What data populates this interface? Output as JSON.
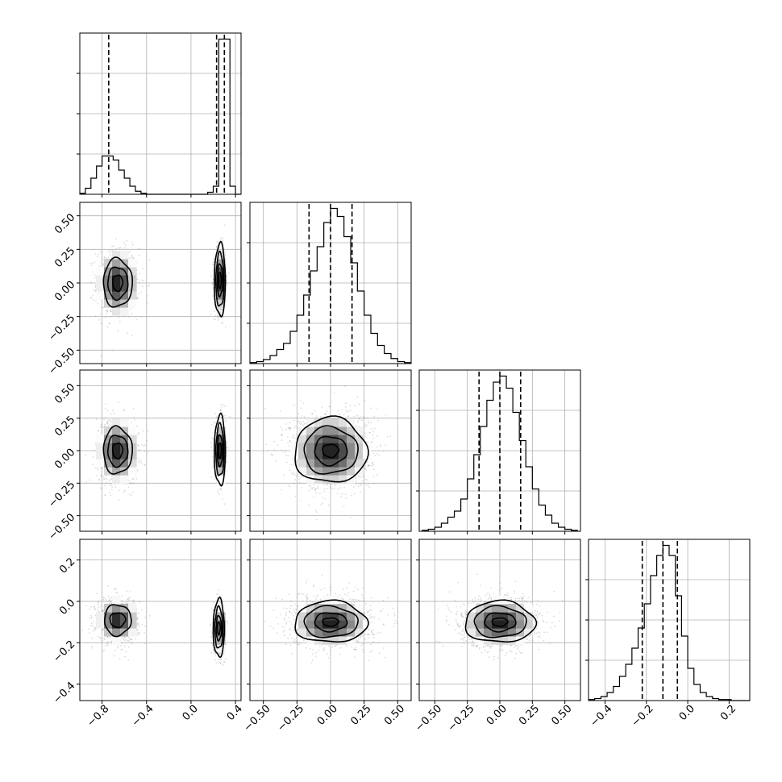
{
  "chart_data": {
    "type": "corner",
    "grid": true,
    "parameters": [
      {
        "range": [
          -1.0,
          0.45
        ],
        "ticks": [
          -0.8,
          -0.4,
          0.0,
          0.4
        ],
        "tick_labels": [
          "−0.8",
          "−0.4",
          "0.0",
          "0.4"
        ],
        "hist": {
          "bin_edges": [
            -1.0,
            -0.95,
            -0.9,
            -0.85,
            -0.8,
            -0.75,
            -0.7,
            -0.65,
            -0.6,
            -0.55,
            -0.5,
            -0.45,
            -0.4,
            -0.35,
            -0.3,
            -0.25,
            -0.2,
            -0.15,
            -0.1,
            -0.05,
            0.0,
            0.05,
            0.1,
            0.15,
            0.2,
            0.25,
            0.3,
            0.35,
            0.4,
            0.45
          ],
          "counts": [
            0.5,
            3,
            8,
            14,
            19,
            19,
            17,
            12,
            8,
            4,
            1.5,
            0.5,
            0,
            0,
            0,
            0,
            0,
            0,
            0,
            0,
            0,
            0,
            0,
            1,
            4,
            77,
            77,
            4,
            0
          ],
          "ymax": 80
        },
        "quantiles": [
          -0.74,
          0.23,
          0.3
        ]
      },
      {
        "range": [
          -0.6,
          0.6
        ],
        "ticks": [
          -0.5,
          -0.25,
          0.0,
          0.25,
          0.5
        ],
        "tick_labels": [
          "−0.50",
          "−0.25",
          "0.00",
          "0.25",
          "0.50"
        ],
        "hist": {
          "bin_edges": [
            -0.6,
            -0.55,
            -0.5,
            -0.45,
            -0.4,
            -0.35,
            -0.3,
            -0.25,
            -0.2,
            -0.15,
            -0.1,
            -0.05,
            0.0,
            0.05,
            0.1,
            0.15,
            0.2,
            0.25,
            0.3,
            0.35,
            0.4,
            0.45,
            0.5,
            0.55,
            0.6
          ],
          "counts": [
            0.5,
            1,
            2,
            4,
            7,
            10,
            16,
            24,
            34,
            46,
            58,
            70,
            77,
            73,
            63,
            50,
            36,
            24,
            15,
            9,
            5,
            2.5,
            1,
            0.5
          ],
          "ymax": 80
        },
        "quantiles": [
          -0.16,
          0.0,
          0.16
        ]
      },
      {
        "range": [
          -0.62,
          0.62
        ],
        "ticks": [
          -0.5,
          -0.25,
          0.0,
          0.25,
          0.5
        ],
        "tick_labels": [
          "−0.50",
          "−0.25",
          "0.00",
          "0.25",
          "0.50"
        ],
        "hist": {
          "bin_edges": [
            -0.6,
            -0.55,
            -0.5,
            -0.45,
            -0.4,
            -0.35,
            -0.3,
            -0.25,
            -0.2,
            -0.15,
            -0.1,
            -0.05,
            0.0,
            0.05,
            0.1,
            0.15,
            0.2,
            0.25,
            0.3,
            0.35,
            0.4,
            0.45,
            0.5,
            0.55,
            0.6
          ],
          "counts": [
            0.5,
            1,
            2,
            4,
            7,
            10,
            16,
            26,
            38,
            52,
            65,
            74,
            77,
            71,
            59,
            45,
            32,
            21,
            13,
            8,
            4,
            2,
            1,
            0.5
          ],
          "ymax": 80
        },
        "quantiles": [
          -0.16,
          0.0,
          0.16
        ]
      },
      {
        "range": [
          -0.48,
          0.3
        ],
        "ticks": [
          -0.4,
          -0.2,
          0.0,
          0.2
        ],
        "tick_labels": [
          "−0.4",
          "−0.2",
          "0.0",
          "0.2"
        ],
        "hist": {
          "bin_edges": [
            -0.48,
            -0.45,
            -0.42,
            -0.39,
            -0.36,
            -0.33,
            -0.3,
            -0.27,
            -0.24,
            -0.21,
            -0.18,
            -0.15,
            -0.12,
            -0.09,
            -0.06,
            -0.03,
            0.0,
            0.03,
            0.06,
            0.09,
            0.12,
            0.15,
            0.18,
            0.21,
            0.24,
            0.27,
            0.3
          ],
          "counts": [
            0.5,
            1,
            2,
            4,
            7,
            12,
            18,
            26,
            36,
            48,
            62,
            72,
            77,
            72,
            52,
            32,
            16,
            8,
            4,
            2,
            1,
            0.5,
            0.5,
            0,
            0,
            0
          ],
          "ymax": 80
        },
        "quantiles": [
          -0.22,
          -0.12,
          -0.05
        ]
      }
    ],
    "hist2d": [
      {
        "x_param": 0,
        "y_param": 1,
        "modes": [
          {
            "center": [
              -0.66,
              0.0
            ],
            "sigma": [
              0.095,
              0.13
            ],
            "weight": 0.5,
            "contours": [
              [
                0.045,
                0.06
              ],
              [
                0.09,
                0.12
              ],
              [
                0.13,
                0.18
              ]
            ]
          },
          {
            "center": [
              0.26,
              0.02
            ],
            "sigma": [
              0.025,
              0.12
            ],
            "weight": 0.5,
            "contours": [
              [
                0.012,
                0.06
              ],
              [
                0.024,
                0.12
              ],
              [
                0.036,
                0.2
              ],
              [
                0.05,
                0.27
              ]
            ]
          }
        ]
      },
      {
        "x_param": 0,
        "y_param": 2,
        "modes": [
          {
            "center": [
              -0.66,
              0.0
            ],
            "sigma": [
              0.095,
              0.13
            ],
            "weight": 0.5,
            "contours": [
              [
                0.045,
                0.06
              ],
              [
                0.09,
                0.12
              ],
              [
                0.13,
                0.18
              ]
            ]
          },
          {
            "center": [
              0.26,
              0.0
            ],
            "sigma": [
              0.025,
              0.12
            ],
            "weight": 0.5,
            "contours": [
              [
                0.012,
                0.06
              ],
              [
                0.024,
                0.12
              ],
              [
                0.036,
                0.2
              ],
              [
                0.05,
                0.27
              ]
            ]
          }
        ]
      },
      {
        "x_param": 0,
        "y_param": 3,
        "modes": [
          {
            "center": [
              -0.66,
              -0.09
            ],
            "sigma": [
              0.095,
              0.055
            ],
            "weight": 0.5,
            "contours": [
              [
                0.07,
                0.035
              ],
              [
                0.12,
                0.075
              ]
            ]
          },
          {
            "center": [
              0.25,
              -0.13
            ],
            "sigma": [
              0.025,
              0.06
            ],
            "weight": 0.5,
            "contours": [
              [
                0.012,
                0.03
              ],
              [
                0.024,
                0.06
              ],
              [
                0.036,
                0.1
              ],
              [
                0.05,
                0.14
              ]
            ]
          }
        ]
      },
      {
        "x_param": 1,
        "y_param": 2,
        "modes": [
          {
            "center": [
              0.0,
              0.0
            ],
            "sigma": [
              0.15,
              0.15
            ],
            "weight": 1,
            "contours": [
              [
                0.06,
                0.05
              ],
              [
                0.12,
                0.11
              ],
              [
                0.2,
                0.18
              ],
              [
                0.27,
                0.25
              ]
            ]
          }
        ]
      },
      {
        "x_param": 1,
        "y_param": 3,
        "modes": [
          {
            "center": [
              0.0,
              -0.1
            ],
            "sigma": [
              0.15,
              0.06
            ],
            "weight": 1,
            "contours": [
              [
                0.06,
                0.02
              ],
              [
                0.12,
                0.045
              ],
              [
                0.2,
                0.075
              ],
              [
                0.27,
                0.1
              ]
            ]
          }
        ]
      },
      {
        "x_param": 2,
        "y_param": 3,
        "modes": [
          {
            "center": [
              0.0,
              -0.1
            ],
            "sigma": [
              0.15,
              0.06
            ],
            "weight": 1,
            "contours": [
              [
                0.06,
                0.02
              ],
              [
                0.12,
                0.045
              ],
              [
                0.2,
                0.075
              ],
              [
                0.27,
                0.1
              ]
            ]
          }
        ]
      }
    ]
  }
}
